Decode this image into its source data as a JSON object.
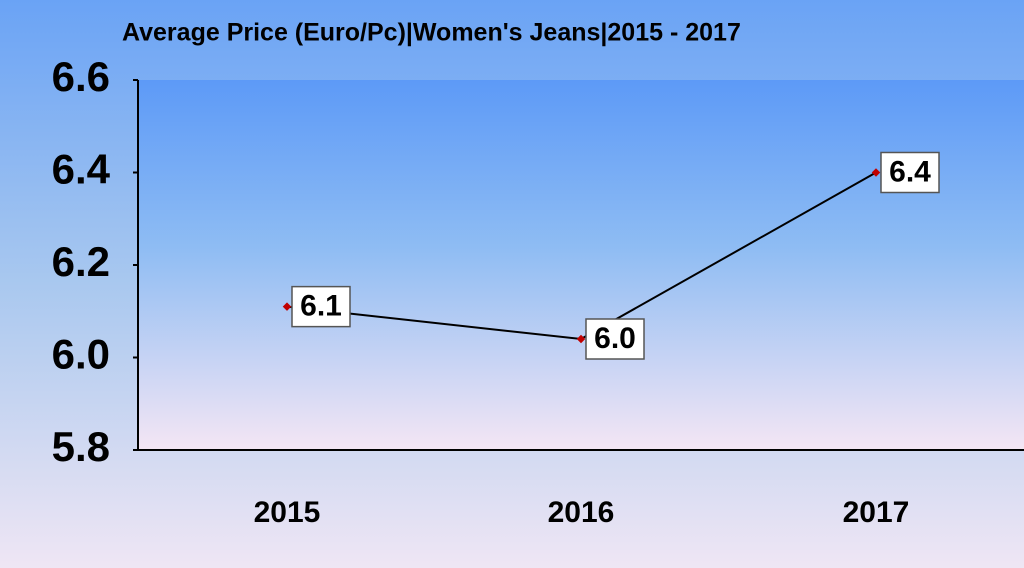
{
  "chart_data": {
    "type": "line",
    "title": "Average Price (Euro/Pc)|Women's Jeans|2015 - 2017",
    "categories": [
      "2015",
      "2016",
      "2017"
    ],
    "values": [
      6.11,
      6.04,
      6.4
    ],
    "value_labels": [
      "6.1",
      "6.0",
      "6.4"
    ],
    "color": "#000000",
    "marker_color": "#c00000",
    "ylim": [
      5.8,
      6.6
    ],
    "yticks": [
      5.8,
      {
        "value": 6,
        "label": "6.0"
      },
      6.2,
      6.4,
      6.6
    ]
  }
}
